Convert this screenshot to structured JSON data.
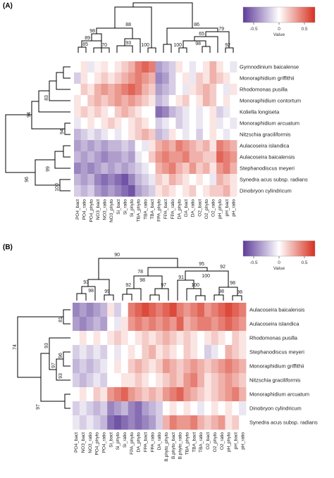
{
  "figure": {
    "colorbar_title": "Value",
    "colors": {
      "low": "#5e3c99",
      "mid": "#ffffff",
      "high": "#d7301f",
      "line": "#000000"
    }
  },
  "chart_data": [
    {
      "panel_label": "(A)",
      "type": "heatmap",
      "colorbar": {
        "ticks": [
          -0.5,
          0,
          0.5
        ],
        "tick_labels": [
          "-0.5",
          "0",
          "0.5"
        ],
        "range": [
          -0.8,
          0.8
        ]
      },
      "columns": [
        "PO4_bact",
        "PO4_ratio",
        "PO4_phyto",
        "NO3_bact",
        "NO3_ratio",
        "NO3_phyto",
        "Si_bact",
        "Si_ratio",
        "Si_phyto",
        "TBA_phyto",
        "TBA_ratio",
        "TBA_bact",
        "FPA_phyto",
        "FPA_bact",
        "FPA_ratio",
        "DA_phyto",
        "DA_bact",
        "DA_ratio",
        "O2_bact",
        "O2_phyto",
        "O2_ratio",
        "pH_phyto",
        "pH_bact",
        "pH_ratio"
      ],
      "rows": [
        "Gymnodinium baicalense",
        "Monoraphidium griffithii",
        "Rhodomonas pusilla",
        "Monoraphidium contortum",
        "Koliella longiseta",
        "Monoraphidium arcuatum",
        "Nitzschia graciliformis",
        "Aulacoseira islandica",
        "Aulacoseira baicalensis",
        "Stephanodiscus meyeri",
        "Synedra acus subsp. radians",
        "Dinobryon cylindricum"
      ],
      "values": [
        [
          0.0,
          0.1,
          -0.1,
          0.05,
          0.1,
          0.0,
          0.1,
          0.2,
          0.3,
          0.5,
          0.6,
          0.5,
          -0.4,
          -0.3,
          -0.2,
          0.1,
          0.0,
          -0.1,
          0.0,
          0.1,
          0.3,
          0.1,
          0.0,
          -0.1
        ],
        [
          -0.2,
          0.1,
          0.0,
          0.1,
          0.2,
          0.1,
          0.2,
          0.3,
          0.4,
          0.5,
          0.4,
          0.3,
          -0.5,
          -0.4,
          -0.2,
          0.0,
          0.1,
          -0.1,
          0.2,
          0.1,
          0.3,
          0.2,
          0.1,
          0.0
        ],
        [
          0.0,
          0.2,
          0.1,
          0.3,
          0.4,
          0.3,
          0.4,
          0.5,
          0.6,
          0.5,
          0.3,
          0.2,
          -0.4,
          -0.3,
          -0.2,
          0.0,
          -0.1,
          0.1,
          0.2,
          0.3,
          0.2,
          0.0,
          -0.1,
          0.1
        ],
        [
          0.1,
          0.0,
          0.2,
          0.3,
          0.2,
          0.3,
          0.4,
          0.3,
          0.4,
          0.3,
          0.2,
          0.1,
          -0.3,
          -0.2,
          0.0,
          0.1,
          0.2,
          0.0,
          0.1,
          0.3,
          0.2,
          0.0,
          0.1,
          0.0
        ],
        [
          0.1,
          0.2,
          0.1,
          0.2,
          0.1,
          0.0,
          0.2,
          0.3,
          0.2,
          0.1,
          0.0,
          0.0,
          -0.6,
          -0.5,
          -0.3,
          -0.2,
          -0.1,
          0.0,
          -0.1,
          0.0,
          0.1,
          -0.2,
          -0.1,
          0.0
        ],
        [
          -0.1,
          0.0,
          0.1,
          0.0,
          0.1,
          0.2,
          0.1,
          0.0,
          0.1,
          0.2,
          0.1,
          0.0,
          -0.2,
          -0.1,
          0.0,
          -0.2,
          -0.1,
          0.0,
          -0.1,
          0.0,
          0.1,
          -0.1,
          0.0,
          -0.1
        ],
        [
          -0.3,
          -0.2,
          -0.1,
          -0.2,
          -0.1,
          0.0,
          -0.1,
          0.0,
          0.1,
          0.2,
          0.3,
          0.2,
          -0.3,
          -0.2,
          0.1,
          0.0,
          -0.1,
          0.0,
          -0.2,
          0.0,
          0.1,
          0.0,
          -0.1,
          0.0
        ],
        [
          -0.4,
          -0.3,
          -0.4,
          -0.3,
          -0.4,
          -0.3,
          -0.3,
          -0.2,
          -0.3,
          0.0,
          -0.1,
          0.1,
          0.3,
          0.4,
          0.3,
          0.5,
          0.4,
          0.3,
          0.2,
          0.3,
          0.1,
          0.5,
          0.4,
          0.3
        ],
        [
          -0.3,
          -0.4,
          -0.3,
          -0.4,
          -0.5,
          -0.4,
          -0.4,
          -0.3,
          -0.4,
          -0.1,
          0.0,
          0.2,
          0.4,
          0.5,
          0.4,
          0.4,
          0.5,
          0.3,
          0.3,
          0.2,
          0.2,
          0.6,
          0.5,
          0.4
        ],
        [
          -0.5,
          -0.4,
          -0.5,
          -0.4,
          -0.3,
          -0.4,
          -0.3,
          -0.4,
          -0.3,
          -0.2,
          -0.1,
          0.0,
          0.3,
          0.4,
          0.5,
          0.3,
          0.2,
          0.4,
          0.2,
          0.3,
          0.1,
          0.4,
          0.5,
          0.3
        ],
        [
          -0.3,
          -0.4,
          -0.3,
          -0.5,
          -0.6,
          -0.5,
          -0.6,
          -0.7,
          -0.5,
          -0.3,
          -0.2,
          -0.1,
          0.2,
          0.1,
          0.3,
          0.2,
          0.1,
          0.0,
          0.1,
          0.0,
          -0.1,
          0.3,
          0.2,
          0.1
        ],
        [
          -0.2,
          -0.3,
          -0.2,
          -0.4,
          -0.5,
          -0.4,
          -0.5,
          -0.6,
          -0.7,
          -0.4,
          -0.3,
          -0.2,
          0.1,
          0.2,
          0.1,
          0.0,
          0.1,
          0.2,
          0.0,
          0.1,
          0.2,
          0.2,
          0.3,
          0.1
        ]
      ],
      "column_bootstrap": [
        "85",
        "89",
        "70",
        "98",
        "93",
        "88",
        "100",
        "100",
        "98",
        "65",
        "79",
        "86",
        "92"
      ],
      "row_bootstrap": [
        "83",
        "94",
        "94",
        "99",
        "96",
        "100"
      ]
    },
    {
      "panel_label": "(B)",
      "type": "heatmap",
      "colorbar": {
        "ticks": [
          -0.5,
          0,
          0.5
        ],
        "tick_labels": [
          "-0.5",
          "0",
          "0.5"
        ],
        "range": [
          -0.8,
          0.8
        ]
      },
      "columns": [
        "PO4_bact",
        "NO3_bact",
        "NO3_ratio",
        "PO4_phyto",
        "PO4_ratio",
        "Si_bact",
        "Si_phyto",
        "Si_ratio",
        "FPA_phyto",
        "DA_phyto",
        "FPA_bact",
        "FPA_ratio",
        "DA_ratio",
        "B.phyto_phyto",
        "B.phyto_bact",
        "B.phyto_ratio",
        "TBA_phyto",
        "TBA_bact",
        "TBA_ratio",
        "O2_bact",
        "O2_phyto",
        "O2_ratio",
        "pH_phyto",
        "pH_bact",
        "pH_ratio"
      ],
      "rows": [
        "Aulacoseira baicalensis",
        "Aulacoseira islandica",
        "Rhodomonas pusilla",
        "Stephanodiscus meyeri",
        "Monoraphidium griffithii",
        "Nitzschia graciliformis",
        "Monoraphidium arcuatum",
        "Dinobryon cylindricum",
        "Synedra acus subsp. radians"
      ],
      "values": [
        [
          -0.5,
          -0.4,
          -0.5,
          -0.4,
          -0.3,
          0.1,
          -0.2,
          0.0,
          0.5,
          0.6,
          0.7,
          0.6,
          0.5,
          0.6,
          0.7,
          0.5,
          0.4,
          0.5,
          0.6,
          0.4,
          0.5,
          0.6,
          0.7,
          0.6,
          0.5
        ],
        [
          -0.4,
          -0.5,
          -0.4,
          -0.3,
          -0.4,
          0.0,
          -0.1,
          0.1,
          0.4,
          0.5,
          0.4,
          0.5,
          0.4,
          0.5,
          0.4,
          0.6,
          0.3,
          0.4,
          0.5,
          0.5,
          0.4,
          0.5,
          0.6,
          0.5,
          0.4
        ],
        [
          0.0,
          0.1,
          0.0,
          0.1,
          0.0,
          0.1,
          0.2,
          0.1,
          0.0,
          0.1,
          0.2,
          0.1,
          0.2,
          0.3,
          0.2,
          0.1,
          0.2,
          0.1,
          0.0,
          0.1,
          0.2,
          0.1,
          0.0,
          0.2,
          0.1
        ],
        [
          -0.2,
          -0.1,
          -0.2,
          -0.1,
          -0.2,
          0.0,
          -0.1,
          0.0,
          0.1,
          0.0,
          0.2,
          0.3,
          0.1,
          0.2,
          0.1,
          0.0,
          0.2,
          0.1,
          0.0,
          -0.2,
          -0.1,
          0.0,
          0.3,
          0.2,
          0.1
        ],
        [
          -0.3,
          -0.2,
          -0.3,
          -0.2,
          -0.1,
          0.0,
          0.1,
          0.0,
          0.2,
          0.3,
          0.2,
          0.1,
          0.2,
          0.4,
          0.3,
          0.2,
          0.3,
          0.4,
          0.3,
          0.2,
          0.3,
          0.4,
          0.5,
          0.4,
          0.3
        ],
        [
          -0.2,
          -0.3,
          -0.2,
          -0.1,
          -0.2,
          0.0,
          0.0,
          0.1,
          0.1,
          0.2,
          0.1,
          0.0,
          0.1,
          0.2,
          0.3,
          0.2,
          0.4,
          0.5,
          0.3,
          0.1,
          0.2,
          0.3,
          0.4,
          0.3,
          0.2
        ],
        [
          0.0,
          0.1,
          0.0,
          0.2,
          0.1,
          0.4,
          0.5,
          0.6,
          0.4,
          0.3,
          0.2,
          0.3,
          0.2,
          0.4,
          0.5,
          0.6,
          0.4,
          0.3,
          0.2,
          0.1,
          0.2,
          0.3,
          0.4,
          0.5,
          0.3
        ],
        [
          -0.2,
          -0.1,
          -0.2,
          -0.3,
          -0.2,
          -0.5,
          -0.4,
          -0.3,
          -0.5,
          -0.6,
          -0.4,
          -0.3,
          -0.2,
          0.0,
          0.1,
          0.0,
          0.1,
          0.0,
          -0.1,
          0.0,
          0.1,
          0.0,
          0.1,
          0.0,
          -0.1
        ],
        [
          -0.1,
          -0.2,
          -0.1,
          -0.2,
          -0.3,
          -0.6,
          -0.7,
          -0.6,
          -0.5,
          -0.6,
          -0.5,
          -0.4,
          -0.2,
          0.3,
          0.5,
          0.4,
          0.4,
          0.5,
          0.3,
          0.2,
          0.3,
          0.4,
          0.1,
          0.2,
          0.0
        ]
      ],
      "column_bootstrap": [
        "93",
        "98",
        "99",
        "90",
        "92",
        "78",
        "98",
        "91",
        "97",
        "100",
        "95",
        "100",
        "92",
        "98",
        "98",
        "98"
      ],
      "row_bootstrap": [
        "81",
        "74",
        "93",
        "96",
        "97",
        "93",
        "97"
      ]
    }
  ]
}
